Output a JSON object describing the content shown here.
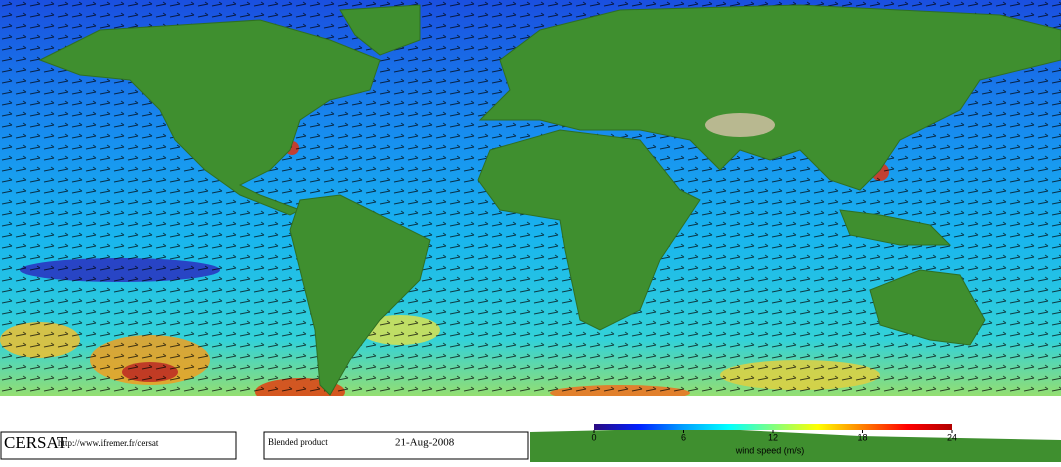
{
  "footer": {
    "logo": "CERSAT",
    "url": "http://www.ifremer.fr/cersat",
    "product": "Blended product",
    "date": "21-Aug-2008"
  },
  "colorbar": {
    "label": "wind speed (m/s)",
    "range": [
      0,
      24
    ],
    "ticks": [
      0,
      6,
      12,
      18,
      24
    ],
    "colors": [
      "#2a0a80",
      "#0020ff",
      "#00a0ff",
      "#00ffff",
      "#80ff80",
      "#ffff00",
      "#ff8000",
      "#ff0000",
      "#b00000"
    ]
  }
}
